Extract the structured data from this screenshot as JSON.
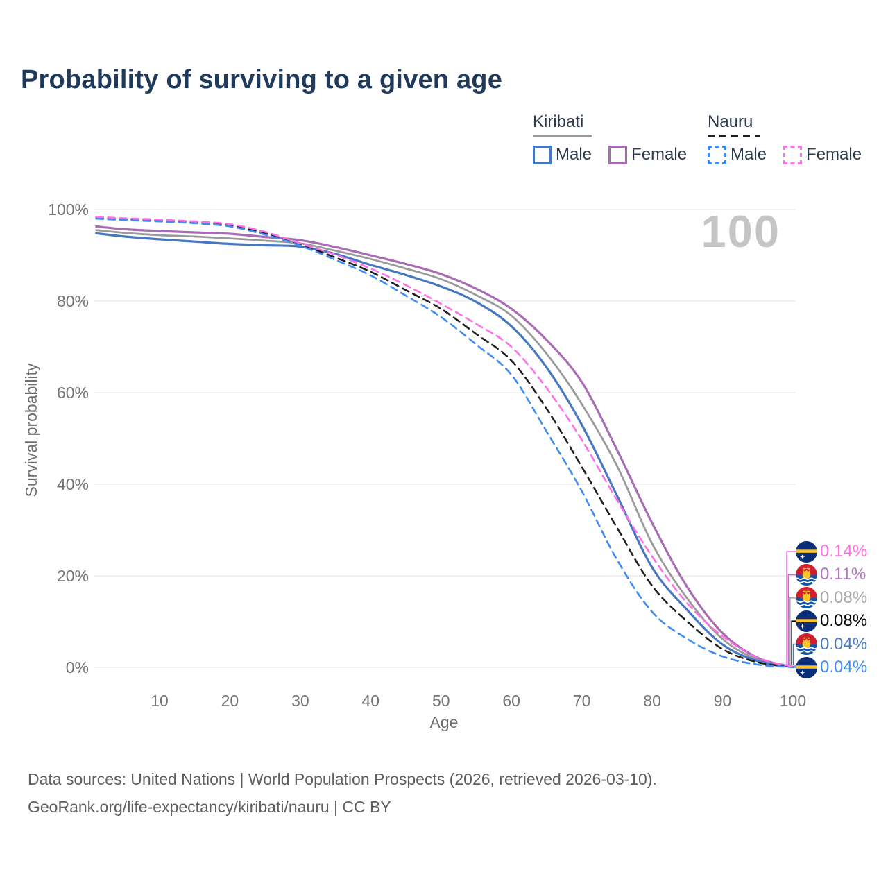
{
  "title": "Probability of surviving to a given age",
  "watermark_age": "100",
  "legend": {
    "groups": [
      {
        "label": "Kiribati",
        "line_style": "solid",
        "underline_color": "#9a9a9a",
        "items": [
          {
            "label": "Male",
            "color": "#4678c2"
          },
          {
            "label": "Female",
            "color": "#a76cb4"
          }
        ]
      },
      {
        "label": "Nauru",
        "line_style": "dashed",
        "underline_color": "#1f1f1f",
        "items": [
          {
            "label": "Male",
            "color": "#3f8cf4"
          },
          {
            "label": "Female",
            "color": "#ff6fe7"
          }
        ]
      }
    ]
  },
  "chart_data": {
    "type": "line",
    "xlabel": "Age",
    "ylabel": "Survival probability",
    "xlim": [
      1,
      100
    ],
    "ylim": [
      0,
      100
    ],
    "grid": "horizontal-only",
    "x_ticks": [
      10,
      20,
      30,
      40,
      50,
      60,
      70,
      80,
      90,
      100
    ],
    "y_ticks": [
      {
        "value": 0,
        "label": "0%"
      },
      {
        "value": 20,
        "label": "20%"
      },
      {
        "value": 40,
        "label": "40%"
      },
      {
        "value": 60,
        "label": "60%"
      },
      {
        "value": 80,
        "label": "80%"
      },
      {
        "value": 100,
        "label": "100%"
      }
    ],
    "series": [
      {
        "id": "kiribati-total",
        "name": "Kiribati (both sexes)",
        "color": "#9a9a9a",
        "dash": false,
        "width": 2.8,
        "points": [
          [
            1,
            95.5
          ],
          [
            5,
            94.9
          ],
          [
            10,
            94.4
          ],
          [
            15,
            94.1
          ],
          [
            20,
            93.7
          ],
          [
            25,
            93.2
          ],
          [
            30,
            92.6
          ],
          [
            35,
            91.0
          ],
          [
            40,
            89.2
          ],
          [
            45,
            87.1
          ],
          [
            50,
            84.8
          ],
          [
            55,
            81.3
          ],
          [
            60,
            76.8
          ],
          [
            65,
            68.5
          ],
          [
            70,
            57.5
          ],
          [
            75,
            44.0
          ],
          [
            80,
            27.0
          ],
          [
            85,
            15.0
          ],
          [
            90,
            6.2
          ],
          [
            95,
            1.7
          ],
          [
            100,
            0.08
          ]
        ]
      },
      {
        "id": "kiribati-female",
        "name": "Kiribati Female",
        "color": "#a76cb4",
        "dash": false,
        "width": 3.2,
        "points": [
          [
            1,
            96.3
          ],
          [
            5,
            95.7
          ],
          [
            10,
            95.3
          ],
          [
            15,
            95.0
          ],
          [
            20,
            94.7
          ],
          [
            25,
            94.0
          ],
          [
            30,
            93.3
          ],
          [
            35,
            91.8
          ],
          [
            40,
            90.0
          ],
          [
            45,
            88.1
          ],
          [
            50,
            85.9
          ],
          [
            55,
            82.7
          ],
          [
            60,
            78.3
          ],
          [
            65,
            71.5
          ],
          [
            70,
            62.3
          ],
          [
            75,
            47.5
          ],
          [
            80,
            31.5
          ],
          [
            85,
            17.5
          ],
          [
            90,
            7.5
          ],
          [
            95,
            2.1
          ],
          [
            100,
            0.11
          ]
        ]
      },
      {
        "id": "kiribati-male",
        "name": "Kiribati Male",
        "color": "#4678c2",
        "dash": false,
        "width": 3.2,
        "points": [
          [
            1,
            94.8
          ],
          [
            5,
            94.1
          ],
          [
            10,
            93.5
          ],
          [
            15,
            93.0
          ],
          [
            20,
            92.5
          ],
          [
            25,
            92.2
          ],
          [
            30,
            91.9
          ],
          [
            35,
            90.3
          ],
          [
            40,
            87.9
          ],
          [
            45,
            85.7
          ],
          [
            50,
            83.2
          ],
          [
            55,
            79.8
          ],
          [
            60,
            74.5
          ],
          [
            65,
            65.5
          ],
          [
            70,
            53.0
          ],
          [
            75,
            37.5
          ],
          [
            80,
            21.8
          ],
          [
            85,
            12.5
          ],
          [
            90,
            5.0
          ],
          [
            95,
            1.4
          ],
          [
            100,
            0.04
          ]
        ]
      },
      {
        "id": "nauru-total",
        "name": "Nauru (both sexes)",
        "color": "#1f1f1f",
        "dash": true,
        "width": 2.6,
        "points": [
          [
            1,
            98.2
          ],
          [
            5,
            97.9
          ],
          [
            10,
            97.6
          ],
          [
            15,
            97.2
          ],
          [
            20,
            96.6
          ],
          [
            25,
            94.8
          ],
          [
            30,
            92.4
          ],
          [
            35,
            89.5
          ],
          [
            40,
            86.4
          ],
          [
            45,
            82.4
          ],
          [
            50,
            78.3
          ],
          [
            55,
            72.8
          ],
          [
            60,
            67.0
          ],
          [
            65,
            56.5
          ],
          [
            70,
            43.8
          ],
          [
            75,
            30.5
          ],
          [
            80,
            17.8
          ],
          [
            85,
            10.0
          ],
          [
            90,
            4.0
          ],
          [
            95,
            1.1
          ],
          [
            100,
            0.08
          ]
        ]
      },
      {
        "id": "nauru-male",
        "name": "Nauru Male",
        "color": "#3f8cf4",
        "dash": true,
        "width": 2.6,
        "points": [
          [
            1,
            98.0
          ],
          [
            5,
            97.7
          ],
          [
            10,
            97.4
          ],
          [
            15,
            97.0
          ],
          [
            20,
            96.3
          ],
          [
            25,
            94.5
          ],
          [
            30,
            92.1
          ],
          [
            35,
            89.0
          ],
          [
            40,
            85.6
          ],
          [
            45,
            81.2
          ],
          [
            50,
            76.5
          ],
          [
            55,
            70.5
          ],
          [
            60,
            63.9
          ],
          [
            65,
            51.5
          ],
          [
            70,
            38.5
          ],
          [
            75,
            23.5
          ],
          [
            80,
            12.1
          ],
          [
            85,
            6.2
          ],
          [
            90,
            2.4
          ],
          [
            95,
            0.6
          ],
          [
            100,
            0.04
          ]
        ]
      },
      {
        "id": "nauru-female",
        "name": "Nauru Female",
        "color": "#ff6fe7",
        "dash": true,
        "width": 2.6,
        "points": [
          [
            1,
            98.4
          ],
          [
            5,
            98.1
          ],
          [
            10,
            97.8
          ],
          [
            15,
            97.4
          ],
          [
            20,
            96.8
          ],
          [
            25,
            95.1
          ],
          [
            30,
            92.6
          ],
          [
            35,
            90.1
          ],
          [
            40,
            87.1
          ],
          [
            45,
            83.5
          ],
          [
            50,
            79.4
          ],
          [
            55,
            75.0
          ],
          [
            60,
            70.0
          ],
          [
            65,
            61.0
          ],
          [
            70,
            49.7
          ],
          [
            75,
            36.5
          ],
          [
            80,
            24.2
          ],
          [
            85,
            14.0
          ],
          [
            90,
            6.8
          ],
          [
            95,
            2.1
          ],
          [
            100,
            0.14
          ]
        ]
      }
    ],
    "end_labels": [
      {
        "series": "nauru-female",
        "flag": "nauru",
        "value": "0.14%",
        "color": "#ff6fe7"
      },
      {
        "series": "kiribati-female",
        "flag": "kiribati",
        "value": "0.11%",
        "color": "#b077c0"
      },
      {
        "series": "kiribati-total",
        "flag": "kiribati",
        "value": "0.08%",
        "color": "#a9a9a9"
      },
      {
        "series": "nauru-total",
        "flag": "nauru",
        "value": "0.08%",
        "color": "#000000"
      },
      {
        "series": "kiribati-male",
        "flag": "kiribati",
        "value": "0.04%",
        "color": "#4678c2"
      },
      {
        "series": "nauru-male",
        "flag": "nauru",
        "value": "0.04%",
        "color": "#3f8cf4"
      }
    ],
    "flags": {
      "nauru": {
        "blue": "#0a2d7a",
        "yellow": "#fec327",
        "star": "#ffffff"
      },
      "kiribati": {
        "red": "#cf1f2f",
        "blue": "#1355a8",
        "gold": "#fec327",
        "waves": "#ffffff"
      }
    }
  },
  "footer": {
    "line1": "Data sources: United Nations | World Population Prospects (2026, retrieved 2026-03-10).",
    "line2": "GeoRank.org/life-expectancy/kiribati/nauru | CC BY"
  }
}
